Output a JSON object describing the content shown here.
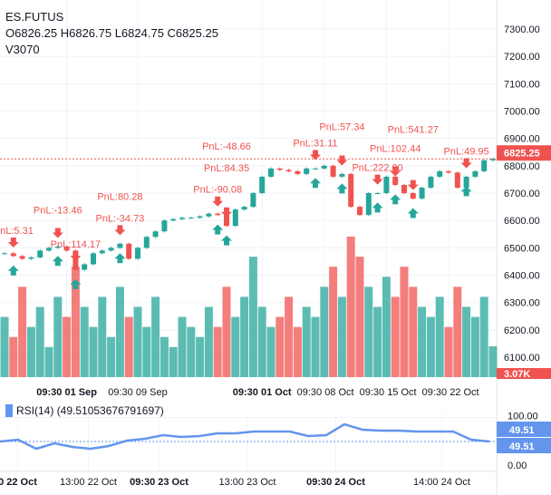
{
  "legend": {
    "symbol": "ES.FUTUS",
    "ohlc": "O6826.25 H6826.75 L6824.75 C6825.25",
    "volume": "V3070"
  },
  "rsi_legend": "RSI(14) (49.51053676791697)",
  "colors": {
    "up": "#26a69a",
    "down": "#ef5350",
    "rsi": "#6495ed",
    "marker_text": "#ef5350"
  },
  "chart_data": [
    {
      "type": "candlestick",
      "price_ticks": [
        "7300.00",
        "7200.00",
        "7100.00",
        "7000.00",
        "6900.00",
        "6800.00",
        "6700.00",
        "6600.00",
        "6500.00",
        "6400.00",
        "6300.00",
        "6200.00",
        "6100.00"
      ],
      "price_tick_values": [
        7300,
        7200,
        7100,
        7000,
        6900,
        6800,
        6700,
        6600,
        6500,
        6400,
        6300,
        6200,
        6100
      ],
      "last_price": 6825.25,
      "last_price_label": "6825.25",
      "volume_label": "3.07K",
      "time_ticks": [
        "09:30 01 Sep",
        "09:30 09 Sep",
        "09:30 01 Oct",
        "09:30 08 Oct",
        "09:30 15 Oct",
        "09:30 22 Oct"
      ],
      "time_tick_index": [
        7,
        15,
        29,
        36,
        43,
        50
      ],
      "time_tick_bold": [
        true,
        false,
        true,
        false,
        false,
        false
      ],
      "closes": [
        6480,
        6470,
        6460,
        6465,
        6490,
        6500,
        6505,
        6490,
        6420,
        6440,
        6480,
        6490,
        6500,
        6515,
        6460,
        6500,
        6540,
        6560,
        6600,
        6605,
        6610,
        6610,
        6615,
        6625,
        6620,
        6580,
        6640,
        6650,
        6700,
        6760,
        6790,
        6785,
        6780,
        6770,
        6790,
        6790,
        6800,
        6760,
        6770,
        6650,
        6620,
        6700,
        6700,
        6760,
        6730,
        6700,
        6680,
        6720,
        6760,
        6780,
        6775,
        6720,
        6760,
        6780,
        6820,
        6825.25
      ],
      "volume_k": [
        6,
        4,
        9,
        5,
        7,
        3,
        8,
        6,
        11,
        7,
        5,
        8,
        4,
        9,
        6,
        7,
        5,
        8,
        4,
        3,
        6,
        5,
        4,
        7,
        5,
        9,
        6,
        8,
        12,
        7,
        5,
        6,
        8,
        5,
        7,
        6,
        9,
        11,
        8,
        14,
        12,
        9,
        7,
        10,
        8,
        11,
        9,
        7,
        6,
        8,
        5,
        9,
        7,
        6,
        8,
        3.07
      ],
      "markers": [
        {
          "buy": 1,
          "sell": 1,
          "label": "PnL:5.31"
        },
        {
          "buy": 6,
          "sell": 6,
          "label": "PnL:-13.46"
        },
        {
          "buy": 8,
          "sell": 8,
          "label": "PnL:114.17"
        },
        {
          "buy": 13,
          "sell": 13,
          "label": "PnL:-34.73"
        },
        {
          "buy": 13,
          "sell": 13,
          "label": "PnL:80.28"
        },
        {
          "buy": 24,
          "sell": 24,
          "label": "PnL:-90.08"
        },
        {
          "buy": 25,
          "sell": 25,
          "label": "PnL:84.35"
        },
        {
          "buy": 25,
          "sell": 25,
          "label": "PnL:-48.66"
        },
        {
          "buy": 35,
          "sell": 35,
          "label": "PnL:31.11"
        },
        {
          "buy": 38,
          "sell": 38,
          "label": "PnL:57.34"
        },
        {
          "buy": 42,
          "sell": 42,
          "label": "PnL:222.00"
        },
        {
          "buy": 44,
          "sell": 44,
          "label": "PnL:102.44"
        },
        {
          "buy": 46,
          "sell": 46,
          "label": "PnL:541.27"
        },
        {
          "buy": 52,
          "sell": 52,
          "label": "PnL:49.95"
        }
      ]
    },
    {
      "type": "line",
      "name": "RSI(14)",
      "ylim": [
        0,
        100
      ],
      "y_ticks": [
        "100.00",
        "0.00"
      ],
      "current_labels": [
        "49.51",
        "49.51"
      ],
      "reference_value": 49.51,
      "time_ticks": [
        "0 22 Oct",
        "13:00 22 Oct",
        "09:30 23 Oct",
        "13:00 23 Oct",
        "09:30 24 Oct",
        "14:00 24 Oct"
      ],
      "time_tick_index": [
        1,
        5,
        9,
        14,
        19,
        25
      ],
      "time_tick_bold": [
        true,
        false,
        true,
        false,
        true,
        false
      ],
      "values": [
        49.5,
        53.3,
        34.3,
        45.7,
        38.1,
        34.3,
        40,
        51.4,
        55.2,
        62.9,
        59,
        61,
        66.7,
        66.7,
        70.5,
        70.5,
        70.5,
        61,
        62.9,
        85.7,
        74.3,
        72.4,
        72.4,
        70.5,
        70.5,
        70.5,
        53.3,
        49.5
      ]
    }
  ]
}
